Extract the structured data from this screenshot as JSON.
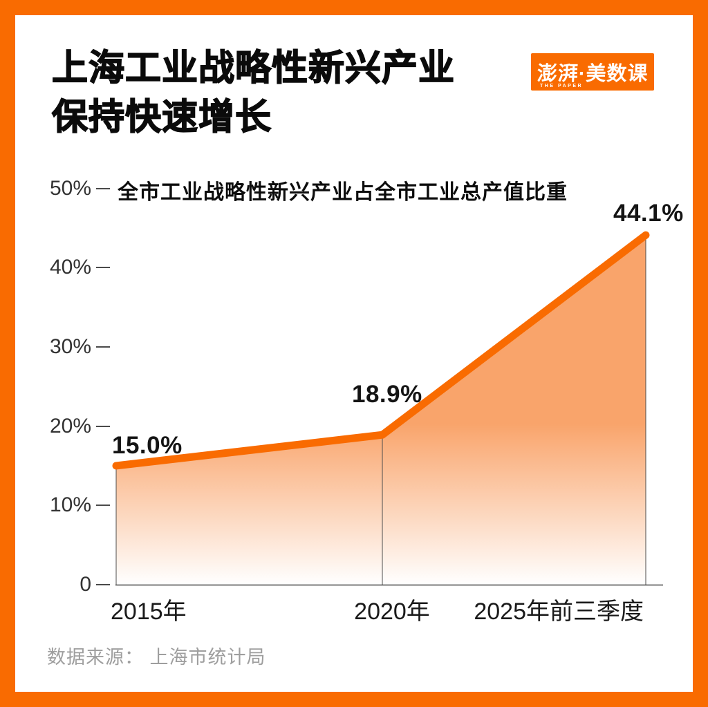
{
  "header": {
    "title_line1": "上海工业战略性新兴产业",
    "title_line2": "保持快速增长",
    "logo": {
      "text": "澎湃·美数课",
      "subtext": "THE PAPER",
      "bg_color": "#F96B01"
    }
  },
  "chart_data": {
    "type": "area",
    "title": "全市工业战略性新兴产业占全市工业总产值比重",
    "categories": [
      "2015年",
      "2020年",
      "2025年前三季度"
    ],
    "values": [
      15.0,
      18.9,
      44.1
    ],
    "point_labels": [
      "15.0%",
      "18.9%",
      "44.1%"
    ],
    "ylim": [
      0,
      50
    ],
    "yticks": [
      {
        "value": 0,
        "label": "0"
      },
      {
        "value": 10,
        "label": "10%"
      },
      {
        "value": 20,
        "label": "20%"
      },
      {
        "value": 30,
        "label": "30%"
      },
      {
        "value": 40,
        "label": "40%"
      },
      {
        "value": 50,
        "label": "50%"
      }
    ],
    "grid": "off",
    "legend": "none",
    "line_color": "#F96B01",
    "fill_color_top": "#F9A46B",
    "fill_color_bottom": "#FFFFFF",
    "guide_color": "#4d4d4d"
  },
  "footer": {
    "source": "数据来源： 上海市统计局"
  }
}
